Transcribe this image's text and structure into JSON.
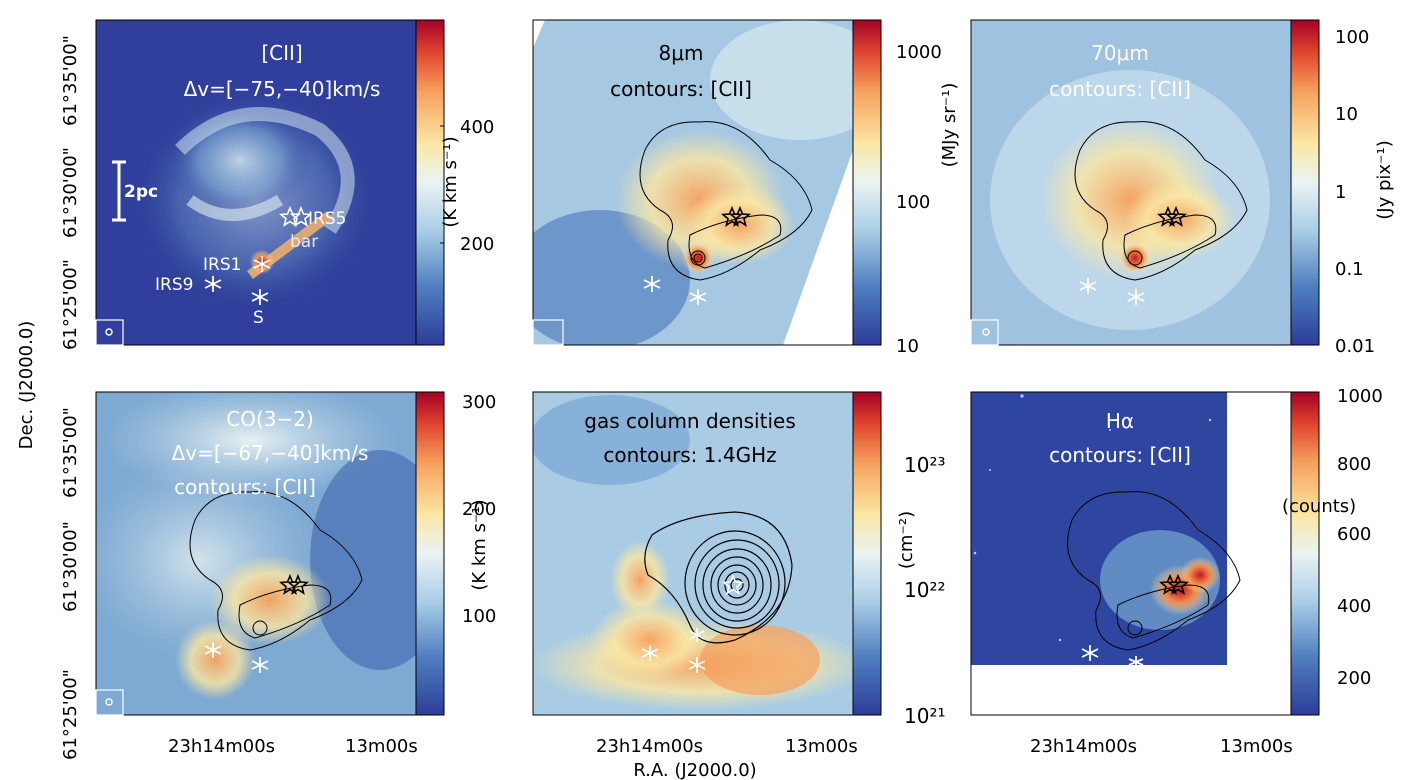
{
  "figure": {
    "xlabel": "R.A. (J2000.0)",
    "ylabel": "Dec. (J2000.0)",
    "ra_ticks": [
      "23h14m00s",
      "13m00s"
    ],
    "dec_ticks_top": [
      "61°25'00\"",
      "61°30'00\"",
      "61°35'00\""
    ],
    "dec_ticks_bottom": [
      "61°25'00\"",
      "61°30'00\"",
      "61°35'00\""
    ]
  },
  "panels": [
    {
      "id": "cii",
      "title_line1": "[CII]",
      "title_line2": "Δv=[−75,−40]km/s",
      "title_line3": "",
      "title_color": "#ffffff",
      "colorbar_label": "(K km s⁻¹)",
      "colorbar_ticks": [
        "200",
        "400"
      ],
      "scale_label": "2pc",
      "sources": {
        "irs5": "IRS5",
        "bar": "bar",
        "irs1": "IRS1",
        "irs9": "IRS9",
        "s": "S"
      }
    },
    {
      "id": "8um",
      "title_line1": "8μm",
      "title_line2": "contours: [CII]",
      "title_color": "#000000",
      "colorbar_label": "(MJy sr⁻¹)",
      "colorbar_ticks": [
        "10",
        "100",
        "1000"
      ]
    },
    {
      "id": "70um",
      "title_line1": "70μm",
      "title_line2": "contours: [CII]",
      "title_color": "#ffffff",
      "colorbar_label": "(Jy pix⁻¹)",
      "colorbar_ticks": [
        "0.01",
        "0.1",
        "1",
        "10",
        "100"
      ]
    },
    {
      "id": "co",
      "title_line1": "CO(3−2)",
      "title_line2": "Δv=[−67,−40]km/s",
      "title_line3": "contours: [CII]",
      "title_color": "#ffffff",
      "colorbar_label": "(K km s⁻¹)",
      "colorbar_ticks": [
        "100",
        "200",
        "300"
      ]
    },
    {
      "id": "nh",
      "title_line1": "gas column densities",
      "title_line2": "contours: 1.4GHz",
      "title_color": "#000000",
      "colorbar_label": "(cm⁻²)",
      "colorbar_ticks": [
        "10²¹",
        "10²²",
        "10²³"
      ]
    },
    {
      "id": "ha",
      "title_line1": "Hα",
      "title_line2": "contours: [CII]",
      "title_color": "#ffffff",
      "colorbar_label": "(counts)",
      "colorbar_ticks": [
        "200",
        "400",
        "600",
        "800",
        "1000"
      ]
    }
  ]
}
